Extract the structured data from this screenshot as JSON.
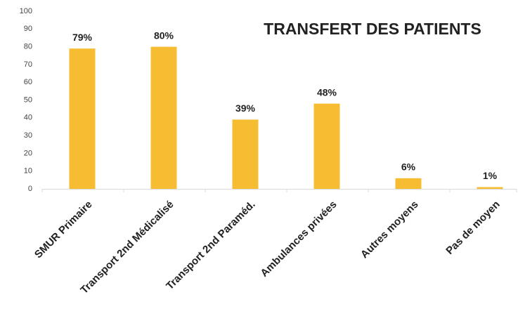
{
  "chart_data": {
    "type": "bar",
    "title": "TRANSFERT DES PATIENTS",
    "categories": [
      "SMUR Primaire",
      "Transport 2nd Médicalisé",
      "Transport 2nd Paraméd.",
      "Ambulances privées",
      "Autres moyens",
      "Pas de moyen"
    ],
    "values": [
      79,
      80,
      39,
      48,
      6,
      1
    ],
    "value_labels": [
      "79%",
      "80%",
      "39%",
      "48%",
      "6%",
      "1%"
    ],
    "color": "#f6bd33",
    "ylim": [
      0,
      100
    ],
    "yticks": [
      0,
      10,
      20,
      30,
      40,
      50,
      60,
      70,
      80,
      90,
      100
    ],
    "grid": false
  }
}
